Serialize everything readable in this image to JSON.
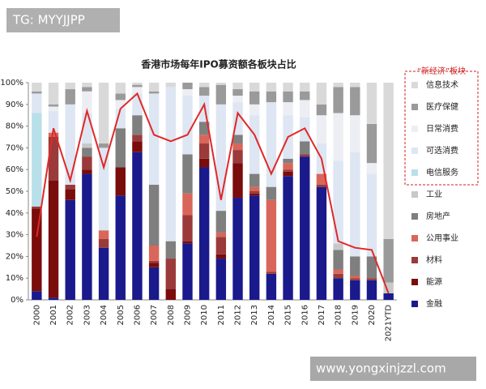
{
  "watermark_top": "TG: MYYJJPP",
  "watermark_bottom": "www.yongxinjzzl.com",
  "chart_data": {
    "type": "bar",
    "stacked": true,
    "title": "香港市场每年IPO募资额各板块占比",
    "legend_group_title": "“新经济”板块",
    "legend_group_color": "#d02020",
    "categories": [
      "2000",
      "2001",
      "2002",
      "2003",
      "2004",
      "2005",
      "2006",
      "2007",
      "2008",
      "2009",
      "2010",
      "2011",
      "2012",
      "2013",
      "2014",
      "2015",
      "2016",
      "2017",
      "2018",
      "2019",
      "2020",
      "2021YTD"
    ],
    "ylim": [
      0,
      100
    ],
    "yticks": [
      {
        "value": 0,
        "label": "0%"
      },
      {
        "value": 10,
        "label": "10%"
      },
      {
        "value": 20,
        "label": "20%"
      },
      {
        "value": 30,
        "label": "30%"
      },
      {
        "value": 40,
        "label": "40%"
      },
      {
        "value": 50,
        "label": "50%"
      },
      {
        "value": 60,
        "label": "60%"
      },
      {
        "value": 70,
        "label": "70%"
      },
      {
        "value": 80,
        "label": "80%"
      },
      {
        "value": 90,
        "label": "90%"
      },
      {
        "value": 100,
        "label": "100%"
      }
    ],
    "series": [
      {
        "name": "金融",
        "color": "#1a1a8c",
        "values": [
          4,
          1,
          46,
          58,
          24,
          48,
          68,
          15,
          0,
          26,
          61,
          19,
          47,
          48,
          12,
          57,
          66,
          52,
          10,
          9,
          9,
          3
        ]
      },
      {
        "name": "能源",
        "color": "#7a0c0c",
        "values": [
          38,
          54,
          5,
          2,
          0,
          13,
          5,
          2,
          5,
          1,
          4,
          2,
          16,
          1,
          0,
          2,
          0,
          0,
          0,
          0,
          0,
          0
        ]
      },
      {
        "name": "材料",
        "color": "#9b3a3a",
        "values": [
          1,
          20,
          2,
          6,
          4,
          0,
          3,
          1,
          14,
          12,
          7,
          8,
          6,
          1,
          1,
          1,
          1,
          1,
          2,
          1,
          1,
          0
        ]
      },
      {
        "name": "公用事业",
        "color": "#d9665a",
        "values": [
          0,
          2,
          0,
          0,
          4,
          0,
          0,
          7,
          0,
          10,
          4,
          2,
          3,
          2,
          33,
          3,
          0,
          5,
          2,
          1,
          0,
          0
        ]
      },
      {
        "name": "房地产",
        "color": "#7f7f7f",
        "values": [
          0,
          0,
          0,
          4,
          0,
          18,
          9,
          28,
          8,
          18,
          6,
          10,
          4,
          6,
          6,
          2,
          6,
          0,
          9,
          9,
          10,
          0
        ]
      },
      {
        "name": "工业",
        "color": "#c8c8c8",
        "values": [
          0,
          0,
          0,
          2,
          0,
          0,
          0,
          0,
          0,
          0,
          0,
          0,
          0,
          0,
          0,
          0,
          0,
          0,
          3,
          0,
          0,
          5
        ]
      },
      {
        "name": "电信服务",
        "color": "#b8e0ea",
        "values": [
          43,
          0,
          0,
          0,
          0,
          0,
          0,
          0,
          0,
          0,
          0,
          0,
          0,
          0,
          0,
          0,
          0,
          0,
          0,
          0,
          0,
          0
        ]
      },
      {
        "name": "可选消费",
        "color": "#dde6f2",
        "values": [
          9,
          10,
          37,
          14,
          38,
          9,
          10,
          42,
          71,
          27,
          12,
          49,
          15,
          27,
          39,
          20,
          11,
          14,
          38,
          48,
          38,
          0
        ]
      },
      {
        "name": "日常消费",
        "color": "#eceef4",
        "values": [
          0,
          2,
          0,
          10,
          0,
          4,
          3,
          0,
          0,
          3,
          0,
          0,
          3,
          5,
          0,
          6,
          8,
          13,
          22,
          17,
          5,
          0
        ]
      },
      {
        "name": "医疗保健",
        "color": "#9a9a9a",
        "values": [
          1,
          1,
          7,
          2,
          2,
          3,
          1,
          1,
          0,
          3,
          4,
          9,
          3,
          6,
          5,
          5,
          4,
          5,
          12,
          13,
          18,
          20
        ]
      },
      {
        "name": "信息技术",
        "color": "#d9d9d9",
        "values": [
          4,
          10,
          3,
          2,
          28,
          5,
          1,
          4,
          2,
          0,
          2,
          1,
          3,
          4,
          4,
          4,
          4,
          10,
          2,
          2,
          19,
          72
        ]
      }
    ],
    "line": {
      "color": "#e02828",
      "values": [
        29,
        79,
        55,
        87,
        61,
        88,
        95,
        76,
        73,
        76,
        90,
        46,
        86,
        76,
        58,
        75,
        79,
        65,
        27,
        24,
        23,
        3
      ]
    }
  }
}
